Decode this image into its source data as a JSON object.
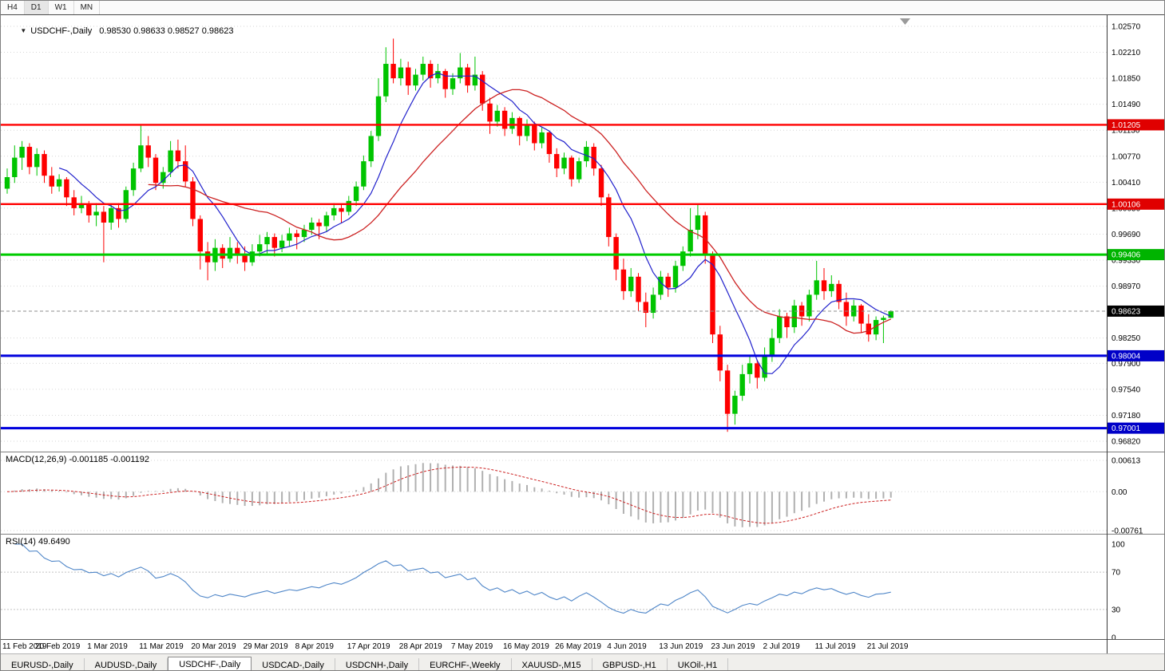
{
  "toolbar": {
    "timeframes": [
      {
        "label": "H4",
        "active": false
      },
      {
        "label": "D1",
        "active": true
      },
      {
        "label": "W1",
        "active": false
      },
      {
        "label": "MN",
        "active": false
      }
    ]
  },
  "chart_header": {
    "symbol_title": "USDCHF-,Daily",
    "ohlc_text": "0.98530 0.98633 0.98527 0.98623"
  },
  "price_axis": {
    "labels": [
      "1.02570",
      "1.02210",
      "1.01850",
      "1.01490",
      "1.01130",
      "1.00770",
      "1.00410",
      "1.00050",
      "0.99690",
      "0.99330",
      "0.98970",
      "0.98250",
      "0.97900",
      "0.97540",
      "0.97180",
      "0.96820"
    ],
    "tags": [
      {
        "value": 1.01205,
        "label": "1.01205",
        "color": "#e00000"
      },
      {
        "value": 1.00106,
        "label": "1.00106",
        "color": "#e00000"
      },
      {
        "value": 0.99406,
        "label": "0.99406",
        "color": "#00b400"
      },
      {
        "value": 0.98623,
        "label": "0.98623",
        "color": "#000000"
      },
      {
        "value": 0.98004,
        "label": "0.98004",
        "color": "#0000c8"
      },
      {
        "value": 0.97001,
        "label": "0.97001",
        "color": "#0000c8"
      }
    ]
  },
  "hlines": [
    {
      "value": 1.01205,
      "color": "#ff0000",
      "width": 2.4
    },
    {
      "value": 1.00106,
      "color": "#ff0000",
      "width": 2.4
    },
    {
      "value": 0.99406,
      "color": "#00cc00",
      "width": 3
    },
    {
      "value": 0.98004,
      "color": "#0000dd",
      "width": 3
    },
    {
      "value": 0.97001,
      "color": "#0000dd",
      "width": 3
    }
  ],
  "current_price": {
    "value": 0.98623,
    "label": "0.98623"
  },
  "macd_panel": {
    "label": "MACD(12,26,9) -0.001185 -0.001192",
    "axis_labels": [
      "0.00613",
      "0.00",
      "-0.00761"
    ],
    "axis_values": [
      0.00613,
      0,
      -0.00761
    ],
    "params": {
      "fast": 12,
      "slow": 26,
      "signal": 9
    }
  },
  "rsi_panel": {
    "label": "RSI(14) 49.6490",
    "axis_labels": [
      "100",
      "70",
      "30",
      "0"
    ],
    "axis_values": [
      100,
      70,
      30,
      0
    ],
    "levels": [
      70,
      30
    ],
    "period": 14,
    "current": 49.649
  },
  "dates": [
    "11 Feb 2019",
    "20 Feb 2019",
    "1 Mar 2019",
    "11 Mar 2019",
    "20 Mar 2019",
    "29 Mar 2019",
    "8 Apr 2019",
    "17 Apr 2019",
    "28 Apr 2019",
    "7 May 2019",
    "16 May 2019",
    "26 May 2019",
    "4 Jun 2019",
    "13 Jun 2019",
    "23 Jun 2019",
    "2 Jul 2019",
    "11 Jul 2019",
    "21 Jul 2019"
  ],
  "tabs": [
    {
      "label": "EURUSD-,Daily",
      "active": false
    },
    {
      "label": "AUDUSD-,Daily",
      "active": false
    },
    {
      "label": "USDCHF-,Daily",
      "active": true
    },
    {
      "label": "USDCAD-,Daily",
      "active": false
    },
    {
      "label": "USDCNH-,Daily",
      "active": false
    },
    {
      "label": "EURCHF-,Weekly",
      "active": false
    },
    {
      "label": "XAUUSD-,M15",
      "active": false
    },
    {
      "label": "GBPUSD-,H1",
      "active": false
    },
    {
      "label": "UKOil-,H1",
      "active": false
    }
  ],
  "colors": {
    "bull": "#00c400",
    "bear": "#fe0000",
    "ma_fast": "#2121cc",
    "ma_slow": "#cc2121",
    "macd_hist": "#b0b0b0",
    "macd_signal": "#cc2121",
    "rsi_line": "#4f86c8",
    "grid": "#d6d6d6",
    "current_price_line": "#8c8c8c"
  },
  "chart_data": {
    "type": "candlestick",
    "symbol": "USDCHF",
    "timeframe": "Daily",
    "ohlc_current": {
      "open": 0.9853,
      "high": 0.98633,
      "low": 0.98527,
      "close": 0.98623
    },
    "y_axis": {
      "max": 1.0257,
      "min": 0.9682
    },
    "bars_per_label": 7,
    "ma_periods": {
      "fast": 8,
      "slow": 20
    },
    "candles": [
      [
        1.0032,
        1.006,
        1.0025,
        1.0048
      ],
      [
        1.0048,
        1.0092,
        1.004,
        1.0075
      ],
      [
        1.0075,
        1.0098,
        1.0058,
        1.009
      ],
      [
        1.009,
        1.0095,
        1.0052,
        1.0062
      ],
      [
        1.0062,
        1.0088,
        1.005,
        1.008
      ],
      [
        1.008,
        1.0085,
        1.004,
        1.005
      ],
      [
        1.005,
        1.0062,
        1.0025,
        1.0035
      ],
      [
        1.0035,
        1.0052,
        1.0028,
        1.0045
      ],
      [
        1.0045,
        1.0048,
        1.0008,
        1.002
      ],
      [
        1.002,
        1.003,
        0.9995,
        1.0005
      ],
      [
        1.0005,
        1.0022,
        0.9998,
        1.001
      ],
      [
        1.001,
        1.0015,
        0.9985,
        0.9995
      ],
      [
        0.9995,
        1.0012,
        0.998,
        1.0
      ],
      [
        1.0,
        1.0008,
        0.993,
        0.9985
      ],
      [
        0.9985,
        1.001,
        0.9975,
        1.0005
      ],
      [
        1.0005,
        1.0012,
        0.9978,
        0.999
      ],
      [
        0.999,
        1.0035,
        0.9985,
        1.003
      ],
      [
        1.003,
        1.0068,
        1.0022,
        1.006
      ],
      [
        1.006,
        1.012,
        1.0055,
        1.0092
      ],
      [
        1.0092,
        1.0105,
        1.0062,
        1.0075
      ],
      [
        1.0075,
        1.008,
        1.003,
        1.004
      ],
      [
        1.004,
        1.0062,
        1.0032,
        1.0055
      ],
      [
        1.0055,
        1.0098,
        1.0048,
        1.0085
      ],
      [
        1.0085,
        1.01,
        1.006,
        1.007
      ],
      [
        1.007,
        1.0092,
        1.0035,
        1.0042
      ],
      [
        1.0042,
        1.0048,
        0.998,
        0.999
      ],
      [
        0.999,
        0.9995,
        0.992,
        0.9945
      ],
      [
        0.9945,
        0.9958,
        0.9905,
        0.993
      ],
      [
        0.993,
        0.9962,
        0.9918,
        0.995
      ],
      [
        0.995,
        0.9955,
        0.9922,
        0.9935
      ],
      [
        0.9935,
        0.9965,
        0.993,
        0.995
      ],
      [
        0.995,
        0.9958,
        0.9928,
        0.994
      ],
      [
        0.994,
        0.9952,
        0.9918,
        0.993
      ],
      [
        0.993,
        0.9955,
        0.9925,
        0.9945
      ],
      [
        0.9945,
        0.9968,
        0.9938,
        0.9955
      ],
      [
        0.9955,
        0.9972,
        0.9942,
        0.9965
      ],
      [
        0.9965,
        0.997,
        0.9938,
        0.995
      ],
      [
        0.995,
        0.9968,
        0.9944,
        0.996
      ],
      [
        0.996,
        0.9978,
        0.9952,
        0.997
      ],
      [
        0.997,
        0.9975,
        0.9948,
        0.9965
      ],
      [
        0.9965,
        0.9982,
        0.9958,
        0.9975
      ],
      [
        0.9975,
        0.9992,
        0.9968,
        0.9985
      ],
      [
        0.9985,
        0.999,
        0.9962,
        0.998
      ],
      [
        0.998,
        1.0,
        0.9972,
        0.9995
      ],
      [
        0.9995,
        1.0012,
        0.9988,
        1.0005
      ],
      [
        1.0005,
        1.001,
        0.9985,
        1.0
      ],
      [
        1.0,
        1.0022,
        0.9995,
        1.0015
      ],
      [
        1.0015,
        1.0042,
        1.0008,
        1.0035
      ],
      [
        1.0035,
        1.0078,
        1.003,
        1.007
      ],
      [
        1.007,
        1.0112,
        1.0062,
        1.0105
      ],
      [
        1.0105,
        1.0185,
        1.0098,
        1.016
      ],
      [
        1.016,
        1.0228,
        1.0152,
        1.0205
      ],
      [
        1.0205,
        1.024,
        1.0178,
        1.0185
      ],
      [
        1.0185,
        1.0212,
        1.0175,
        1.02
      ],
      [
        1.02,
        1.0208,
        1.0162,
        1.0175
      ],
      [
        1.0175,
        1.0198,
        1.0168,
        1.019
      ],
      [
        1.019,
        1.0215,
        1.0182,
        1.0205
      ],
      [
        1.0205,
        1.021,
        1.0172,
        1.0185
      ],
      [
        1.0185,
        1.0205,
        1.0178,
        1.0195
      ],
      [
        1.0195,
        1.0198,
        1.0158,
        1.017
      ],
      [
        1.017,
        1.0192,
        1.0162,
        1.0185
      ],
      [
        1.0185,
        1.022,
        1.0178,
        1.02
      ],
      [
        1.02,
        1.0205,
        1.0165,
        1.0175
      ],
      [
        1.0175,
        1.0215,
        1.0168,
        1.019
      ],
      [
        1.019,
        1.0195,
        1.014,
        1.015
      ],
      [
        1.015,
        1.0158,
        1.0108,
        1.0125
      ],
      [
        1.0125,
        1.0148,
        1.0118,
        1.014
      ],
      [
        1.014,
        1.0145,
        1.0105,
        1.0115
      ],
      [
        1.0115,
        1.0138,
        1.0108,
        1.013
      ],
      [
        1.013,
        1.0132,
        1.0092,
        1.0105
      ],
      [
        1.0105,
        1.0128,
        1.0098,
        1.012
      ],
      [
        1.012,
        1.0125,
        1.0085,
        1.0095
      ],
      [
        1.0095,
        1.0118,
        1.0088,
        1.011
      ],
      [
        1.011,
        1.0112,
        1.0068,
        1.008
      ],
      [
        1.008,
        1.0088,
        1.0048,
        1.006
      ],
      [
        1.006,
        1.0082,
        1.0052,
        1.0075
      ],
      [
        1.0075,
        1.0078,
        1.0035,
        1.0045
      ],
      [
        1.0045,
        1.0075,
        1.004,
        1.007
      ],
      [
        1.007,
        1.0098,
        1.0062,
        1.009
      ],
      [
        1.009,
        1.0095,
        1.005,
        1.006
      ],
      [
        1.006,
        1.0065,
        1.0008,
        1.002
      ],
      [
        1.002,
        1.0025,
        0.9952,
        0.9965
      ],
      [
        0.9965,
        0.997,
        0.9905,
        0.992
      ],
      [
        0.992,
        0.9935,
        0.9878,
        0.989
      ],
      [
        0.989,
        0.9922,
        0.9882,
        0.991
      ],
      [
        0.991,
        0.9915,
        0.9862,
        0.9875
      ],
      [
        0.9875,
        0.9888,
        0.984,
        0.986
      ],
      [
        0.986,
        0.9895,
        0.9852,
        0.9885
      ],
      [
        0.9885,
        0.9918,
        0.9878,
        0.991
      ],
      [
        0.991,
        0.9915,
        0.9882,
        0.9895
      ],
      [
        0.9895,
        0.9932,
        0.9888,
        0.9925
      ],
      [
        0.9925,
        0.9952,
        0.9918,
        0.9945
      ],
      [
        0.9945,
        1.0005,
        0.9938,
        0.9975
      ],
      [
        0.9975,
        1.001,
        0.9962,
        0.9995
      ],
      [
        0.9995,
        1.0,
        0.9928,
        0.994
      ],
      [
        0.994,
        0.9945,
        0.9818,
        0.983
      ],
      [
        0.983,
        0.9842,
        0.9765,
        0.978
      ],
      [
        0.978,
        0.9788,
        0.9695,
        0.972
      ],
      [
        0.972,
        0.9752,
        0.9705,
        0.9745
      ],
      [
        0.9745,
        0.9788,
        0.9738,
        0.9775
      ],
      [
        0.9775,
        0.98,
        0.9762,
        0.979
      ],
      [
        0.979,
        0.9795,
        0.9755,
        0.977
      ],
      [
        0.977,
        0.9812,
        0.9765,
        0.98
      ],
      [
        0.98,
        0.9838,
        0.9792,
        0.9825
      ],
      [
        0.9825,
        0.9865,
        0.9818,
        0.9855
      ],
      [
        0.9855,
        0.986,
        0.9825,
        0.984
      ],
      [
        0.984,
        0.9878,
        0.9832,
        0.987
      ],
      [
        0.987,
        0.9875,
        0.9842,
        0.9855
      ],
      [
        0.9855,
        0.9892,
        0.9848,
        0.9885
      ],
      [
        0.9885,
        0.9932,
        0.9878,
        0.9905
      ],
      [
        0.9905,
        0.9922,
        0.9878,
        0.989
      ],
      [
        0.989,
        0.9912,
        0.9882,
        0.99
      ],
      [
        0.99,
        0.9905,
        0.9865,
        0.9875
      ],
      [
        0.9875,
        0.9888,
        0.9842,
        0.9855
      ],
      [
        0.9855,
        0.9878,
        0.9848,
        0.987
      ],
      [
        0.987,
        0.9872,
        0.9832,
        0.9845
      ],
      [
        0.9845,
        0.9858,
        0.982,
        0.983
      ],
      [
        0.983,
        0.9855,
        0.9822,
        0.985
      ],
      [
        0.985,
        0.9856,
        0.9818,
        0.9853
      ],
      [
        0.9853,
        0.98633,
        0.98527,
        0.98623
      ]
    ]
  }
}
